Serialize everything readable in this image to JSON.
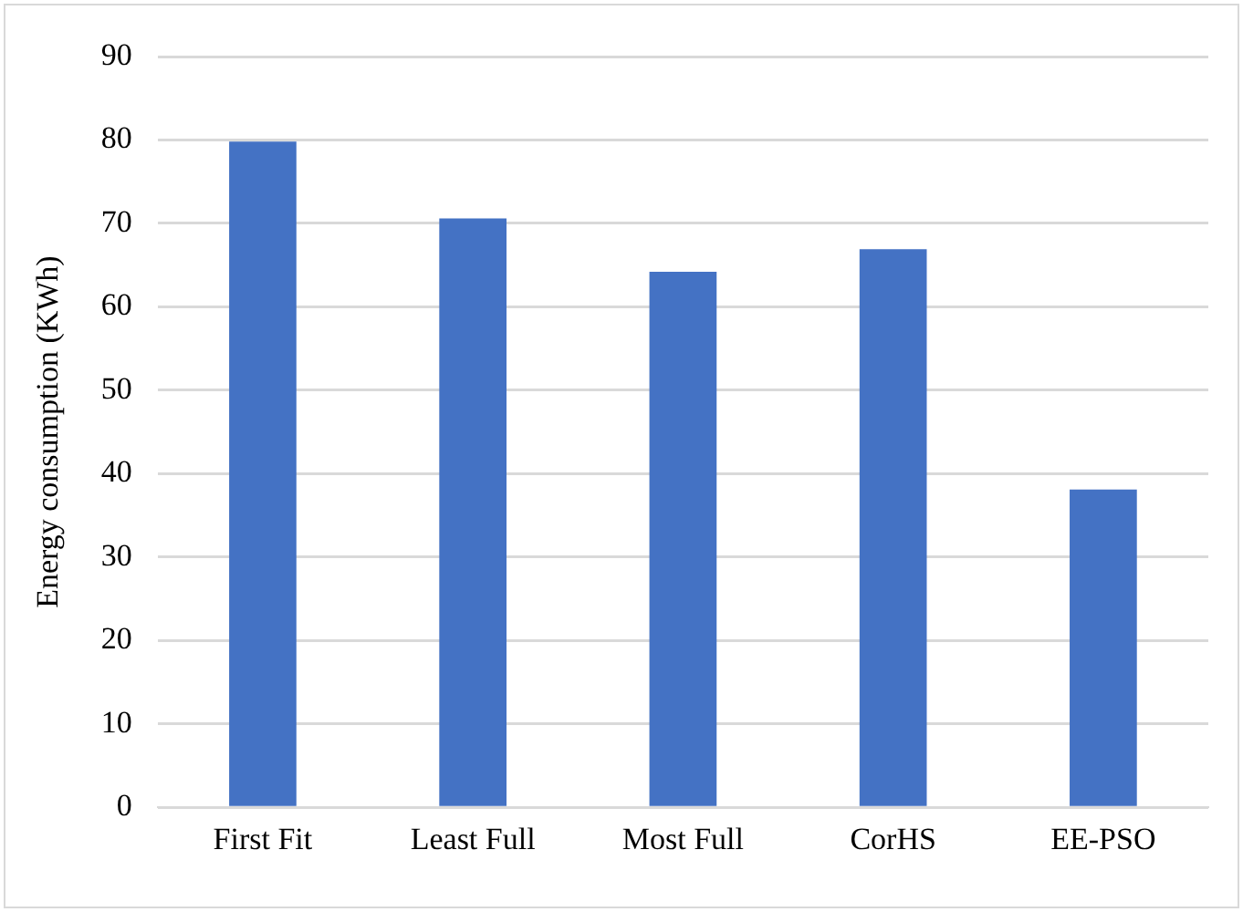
{
  "chart_data": {
    "type": "bar",
    "ylabel": "Energy consumption (KWh)",
    "categories": [
      "First Fit",
      "Least Full",
      "Most Full",
      "CorHS",
      "EE-PSO"
    ],
    "values": [
      79.8,
      70.6,
      64.2,
      66.9,
      38.1
    ],
    "color": "#4472c4",
    "ylim": [
      0,
      90
    ],
    "yticks": [
      0,
      10,
      20,
      30,
      40,
      50,
      60,
      70,
      80,
      90
    ],
    "grid": "y"
  }
}
